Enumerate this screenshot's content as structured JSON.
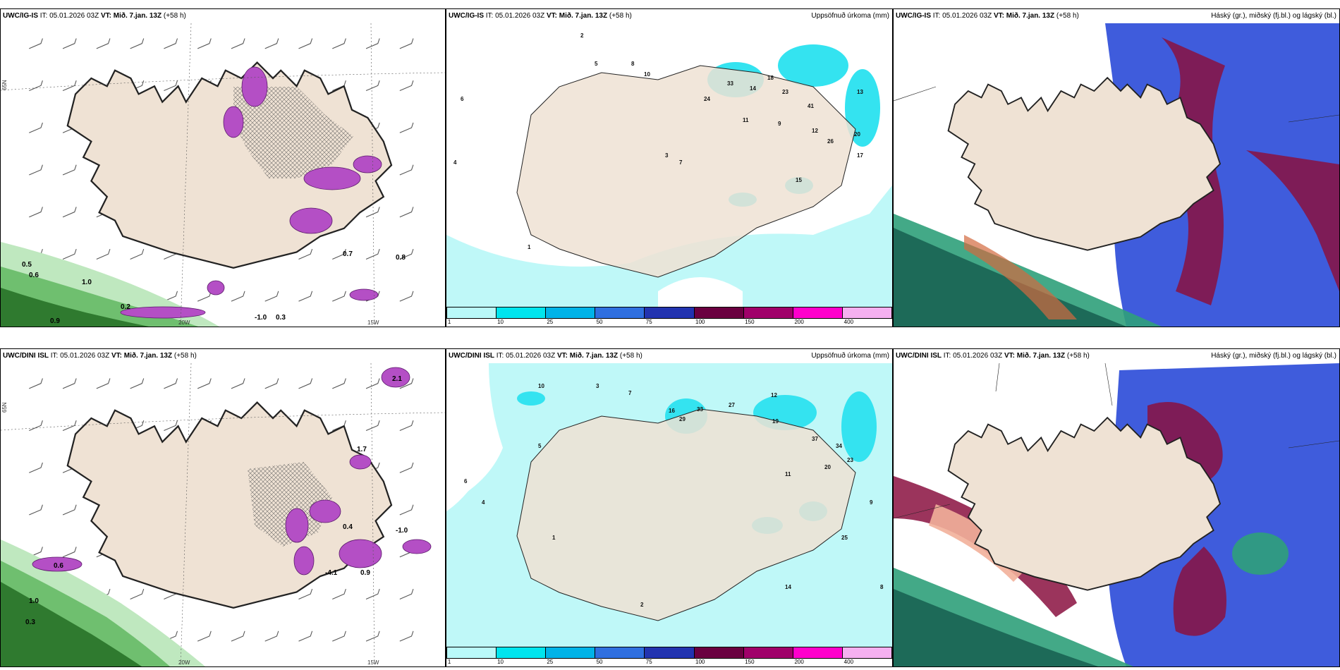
{
  "panels": {
    "p1": {
      "model": "UWC/IG-IS",
      "it_label": "IT:",
      "it": "05.01.2026 03Z",
      "vt_label": "VT: Mið. 7.jan. 13Z",
      "lead": "(+58 h)",
      "right": ""
    },
    "p2": {
      "model": "UWC/IG-IS",
      "it_label": "IT:",
      "it": "05.01.2026 03Z",
      "vt_label": "VT: Mið. 7.jan. 13Z",
      "lead": "(+58 h)",
      "right": "Uppsöfnuð úrkoma (mm)"
    },
    "p3": {
      "model": "UWC/IG-IS",
      "it_label": "IT:",
      "it": "05.01.2026 03Z",
      "vt_label": "VT: Mið. 7.jan. 13Z",
      "lead": "(+58 h)",
      "right": "Háský (gr.), miðský (fj.bl.) og lágský (bl.)"
    },
    "p4": {
      "model": "UWC/DINI ISL",
      "it_label": "IT:",
      "it": "05.01.2026 03Z",
      "vt_label": "VT: Mið. 7.jan. 13Z",
      "lead": "(+58 h)",
      "right": ""
    },
    "p5": {
      "model": "UWC/DINI ISL",
      "it_label": "IT:",
      "it": "05.01.2026 03Z",
      "vt_label": "VT: Mið. 7.jan. 13Z",
      "lead": "(+58 h)",
      "right": "Uppsöfnuð úrkoma (mm)"
    },
    "p6": {
      "model": "UWC/DINI ISL",
      "it_label": "IT:",
      "it": "05.01.2026 03Z",
      "vt_label": "VT: Mið. 7.jan. 13Z",
      "lead": "(+58 h)",
      "right": "Háský (gr.), miðský (fj.bl.) og lágský (bl.)"
    }
  },
  "grid_labels": {
    "lat": "65N",
    "lon_a": "20W",
    "lon_b": "15W"
  },
  "colorbar": {
    "labels": [
      "1",
      "10",
      "25",
      "50",
      "75",
      "100",
      "150",
      "200",
      "400"
    ],
    "colors": [
      "#b9f9f9",
      "#00e5ee",
      "#00b3e8",
      "#2f6fe0",
      "#2233b0",
      "#6a0040",
      "#a0006a",
      "#ff00cc",
      "#f5b0f0"
    ]
  },
  "precip_values": {
    "top": [
      "2",
      "5",
      "8",
      "10",
      "33",
      "24",
      "14",
      "18",
      "23",
      "41",
      "12",
      "11",
      "9",
      "3",
      "7",
      "15",
      "13",
      "20",
      "26",
      "17",
      "6",
      "4",
      "1"
    ],
    "bottom": [
      "3",
      "10",
      "7",
      "16",
      "29",
      "33",
      "27",
      "12",
      "19",
      "37",
      "34",
      "23",
      "20",
      "11",
      "8",
      "14",
      "25",
      "5",
      "2",
      "4",
      "1",
      "6",
      "9"
    ]
  },
  "cloud_legend": {
    "high": "Háský",
    "mid": "miðský",
    "low": "lágský"
  },
  "colors": {
    "land": "#efe2d4",
    "cyan": "#bff8f8",
    "cyan_deep": "#34e3f0",
    "purple": "#b44fc5",
    "green": "#2f7a2f",
    "green_light": "#bfe8bf",
    "high_cloud": "#2a4ad8",
    "mid_cloud": "#8a1040",
    "low_cloud": "#2fa07a"
  },
  "wind_values": {
    "top": [
      "0.6",
      "0.5",
      "0.9",
      "1.0",
      "0.7",
      "0.8",
      "-1.0",
      "0.3",
      "0.2"
    ],
    "bottom": [
      "0.3",
      "0.4",
      "-1.0",
      "0.9",
      "1.0",
      "-4.1",
      "2.1",
      "1.7",
      "0.6"
    ]
  }
}
